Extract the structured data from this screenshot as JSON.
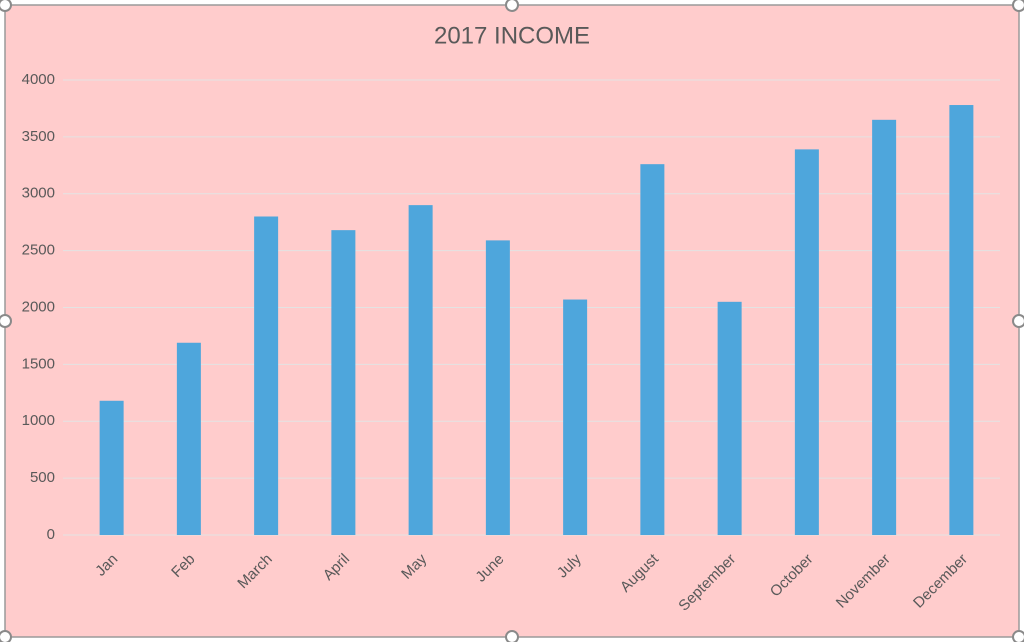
{
  "chart_data": {
    "type": "bar",
    "title": "2017 INCOME",
    "categories": [
      "Jan",
      "Feb",
      "March",
      "April",
      "May",
      "June",
      "July",
      "August",
      "September",
      "October",
      "November",
      "December"
    ],
    "values": [
      1180,
      1690,
      2800,
      2680,
      2900,
      2590,
      2070,
      3260,
      2050,
      3390,
      3650,
      3780
    ],
    "color": "#4ea6dc",
    "ylim": [
      0,
      4000
    ],
    "yticks": [
      0,
      500,
      1000,
      1500,
      2000,
      2500,
      3000,
      3500,
      4000
    ],
    "grid": true
  }
}
